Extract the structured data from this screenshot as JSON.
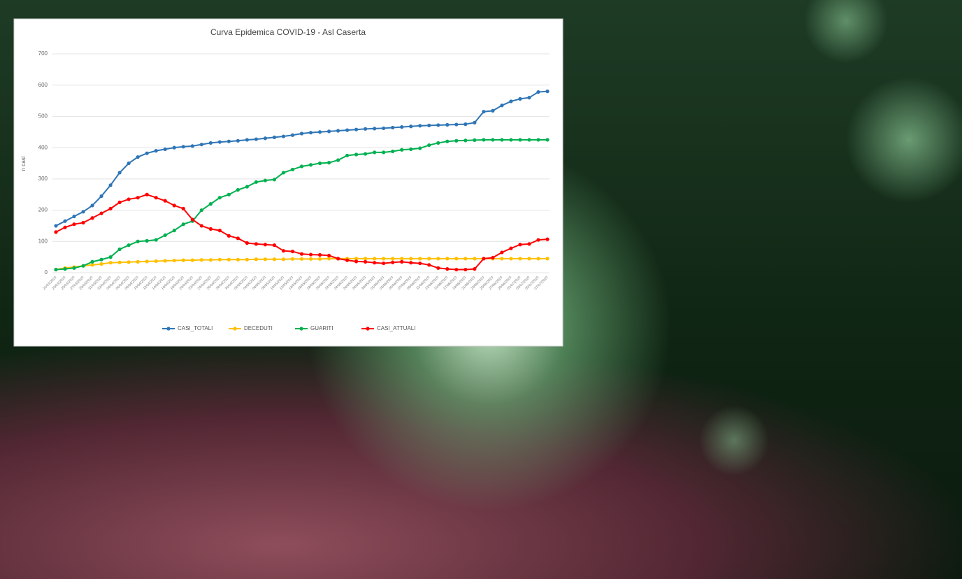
{
  "chart_data": {
    "type": "line",
    "title": "Curva Epidemica COVID-19 - Asl Caserta",
    "y_label": "n casi",
    "categories": [
      "21/03/2020",
      "23/03/2020",
      "25/03/2020",
      "27/03/2020",
      "29/03/2020",
      "31/03/2020",
      "02/04/2020",
      "04/04/2020",
      "06/04/2020",
      "08/04/2020",
      "10/04/2020",
      "12/04/2020",
      "14/04/2020",
      "16/04/2020",
      "18/04/2020",
      "20/04/2020",
      "22/04/2020",
      "24/04/2020",
      "26/04/2020",
      "28/04/2020",
      "30/04/2020",
      "02/05/2020",
      "04/05/2020",
      "06/05/2020",
      "08/05/2020",
      "10/05/2020",
      "12/05/2020",
      "14/05/2020",
      "16/05/2020",
      "18/05/2020",
      "20/05/2020",
      "22/05/2020",
      "24/05/2020",
      "26/05/2020",
      "28/05/2020",
      "30/05/2020",
      "01/06/2020",
      "03/06/2020",
      "05/06/2020",
      "07/06/2020",
      "09/06/2020",
      "11/06/2020",
      "13/06/2020",
      "15/06/2020",
      "17/06/2020",
      "19/06/2020",
      "21/06/2020",
      "23/06/2020",
      "25/06/2020",
      "27/06/2020",
      "29/06/2020",
      "01/07/2020",
      "03/07/2020",
      "05/07/2020",
      "07/07/2020"
    ],
    "series": [
      {
        "name": "CASI_TOTALI",
        "color": "#2e75b6",
        "values": [
          150,
          165,
          180,
          195,
          215,
          245,
          280,
          320,
          350,
          370,
          382,
          390,
          395,
          400,
          403,
          405,
          410,
          415,
          418,
          420,
          422,
          425,
          427,
          430,
          433,
          436,
          440,
          445,
          448,
          450,
          452,
          454,
          456,
          458,
          460,
          461,
          462,
          464,
          466,
          468,
          470,
          471,
          472,
          473,
          474,
          475,
          480,
          515,
          518,
          535,
          548,
          556,
          560,
          578,
          580
        ]
      },
      {
        "name": "DECEDUTI",
        "color": "#ffc000",
        "values": [
          10,
          15,
          18,
          22,
          25,
          28,
          32,
          33,
          34,
          35,
          36,
          37,
          38,
          39,
          40,
          40,
          41,
          41,
          42,
          42,
          42,
          42,
          43,
          43,
          43,
          43,
          44,
          44,
          44,
          44,
          45,
          45,
          45,
          45,
          45,
          45,
          45,
          45,
          45,
          45,
          45,
          45,
          45,
          45,
          45,
          45,
          45,
          45,
          45,
          45,
          45,
          45,
          45,
          45,
          45
        ]
      },
      {
        "name": "GUARITI",
        "color": "#00b050",
        "values": [
          10,
          12,
          15,
          22,
          35,
          42,
          50,
          75,
          88,
          100,
          102,
          105,
          120,
          135,
          155,
          165,
          200,
          220,
          240,
          250,
          265,
          275,
          290,
          295,
          298,
          320,
          330,
          340,
          345,
          350,
          352,
          360,
          375,
          378,
          380,
          385,
          385,
          388,
          393,
          395,
          398,
          408,
          415,
          420,
          422,
          423,
          424,
          425,
          425,
          425,
          425,
          425,
          425,
          425,
          425
        ]
      },
      {
        "name": "CASI_ATTUALI",
        "color": "#ff0000",
        "values": [
          130,
          145,
          155,
          160,
          175,
          190,
          205,
          225,
          235,
          240,
          250,
          240,
          230,
          215,
          205,
          170,
          150,
          140,
          135,
          118,
          110,
          95,
          92,
          90,
          88,
          70,
          68,
          60,
          58,
          57,
          55,
          45,
          40,
          36,
          35,
          32,
          30,
          33,
          35,
          32,
          30,
          25,
          15,
          12,
          10,
          10,
          12,
          45,
          48,
          65,
          78,
          90,
          92,
          105,
          107
        ]
      }
    ],
    "ylim": [
      0,
      700
    ],
    "yticks": [
      0,
      100,
      200,
      300,
      400,
      500,
      600,
      700
    ],
    "grid": true,
    "legend": "bottom"
  }
}
